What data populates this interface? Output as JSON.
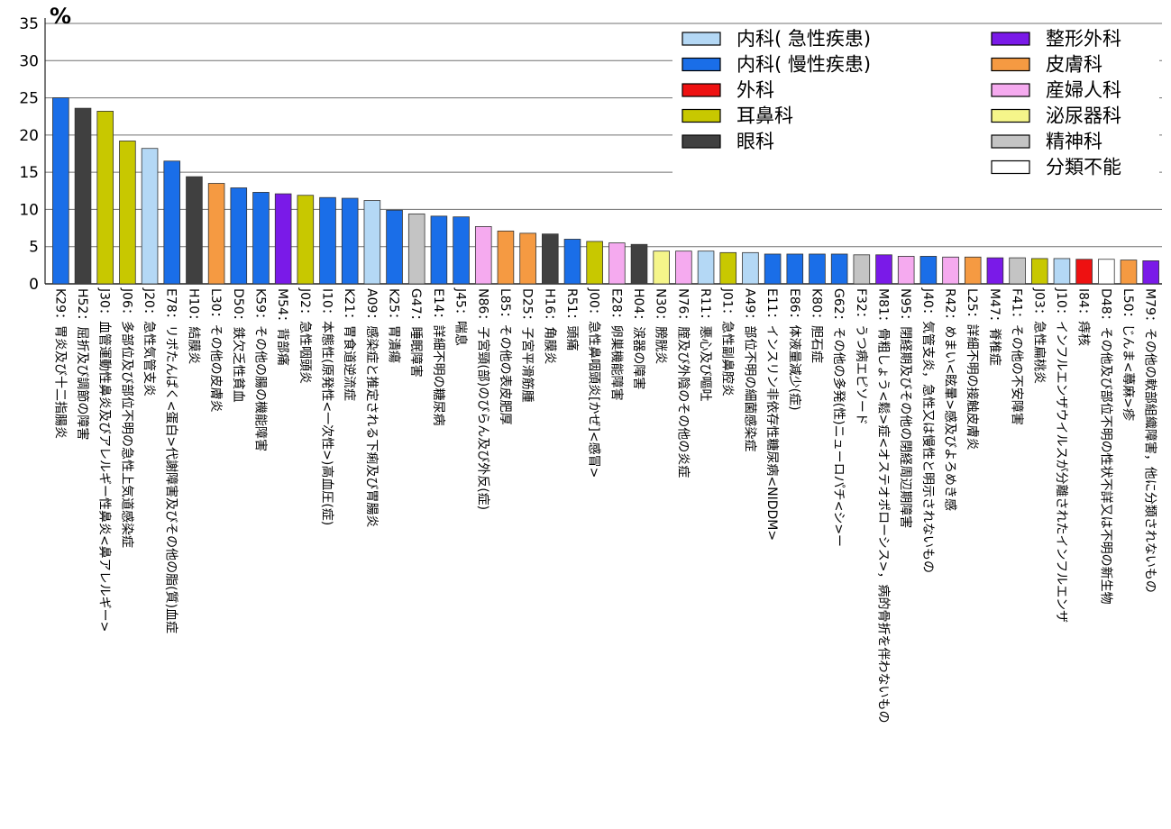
{
  "chart_data": {
    "type": "bar",
    "unit_label": "%",
    "ylim": [
      0,
      35
    ],
    "yticks": [
      0,
      5,
      10,
      15,
      20,
      25,
      30,
      35
    ],
    "grid": "horizontal",
    "legend_placement": "top-right",
    "legend": [
      {
        "key": "ia",
        "label": "内科( 急性疾患)",
        "color": "#b4d8f5"
      },
      {
        "key": "ic",
        "label": "内科( 慢性疾患)",
        "color": "#1a6ee8"
      },
      {
        "key": "su",
        "label": "外科",
        "color": "#ee1111"
      },
      {
        "key": "en",
        "label": "耳鼻科",
        "color": "#c8c800"
      },
      {
        "key": "op",
        "label": "眼科",
        "color": "#404040"
      },
      {
        "key": "or",
        "label": "整形外科",
        "color": "#7a1ae8"
      },
      {
        "key": "de",
        "label": "皮膚科",
        "color": "#f59a42"
      },
      {
        "key": "ob",
        "label": "産婦人科",
        "color": "#f5aaef"
      },
      {
        "key": "ur",
        "label": "泌尿器科",
        "color": "#f5f58a"
      },
      {
        "key": "ps",
        "label": "精神科",
        "color": "#c4c4c4"
      },
      {
        "key": "un",
        "label": "分類不能",
        "color": "#ffffff"
      }
    ],
    "categories": [
      "K29：胃炎及び十二指腸炎",
      "H52：屈折及び調節の障害",
      "J30：血管運動性鼻炎及びアレルギー性鼻炎<鼻アレルギー>",
      "J06：多部位及び部位不明の急性上気道感染症",
      "J20：急性気管支炎",
      "E78：リポたんぱく<蛋白>代謝障害及びその他の脂(質)血症",
      "H10：結膜炎",
      "L30：その他の皮膚炎",
      "D50：鉄欠乏性貧血",
      "K59：その他の腸の機能障害",
      "M54：背部痛",
      "J02：急性咽頭炎",
      "I10：本態性(原発性<一次性>)高血圧(症)",
      "K21：胃食道逆流症",
      "A09：感染症と推定される下痢及び胃腸炎",
      "K25：胃潰瘍",
      "G47：睡眠障害",
      "E14：詳細不明の糖尿病",
      "J45：喘息",
      "N86：子宮頸(部)のびらん及び外反(症)",
      "L85：その他の表皮肥厚",
      "D25：子宮平滑筋腫",
      "H16：角膜炎",
      "R51：頭痛",
      "J00：急性鼻咽頭炎[かぜ]<感冒>",
      "E28：卵巣機能障害",
      "H04：涙器の障害",
      "N30：膀胱炎",
      "N76：腟及び外陰のその他の炎症",
      "R11：悪心及び嘔吐",
      "J01：急性副鼻腔炎",
      "A49：部位不明の細菌感染症",
      "E11：インスリン非依存性糖尿病<NIDDM>",
      "E86：体液量減少(症)",
      "K80：胆石症",
      "G62：その他の多発(性)ニューロパチ<シ>ー",
      "F32：うつ病エピソード",
      "M81：骨粗しょう<鬆>症<オステオポローシス>，病的骨折を伴わないもの",
      "N95：閉経期及びその他の閉経周辺期障害",
      "J40：気管支炎，急性又は慢性と明示されないもの",
      "R42：めまい<眩暈>感及びよろめき感",
      "L25：詳細不明の接触皮膚炎",
      "M47：脊椎症",
      "F41：その他の不安障害",
      "J03：急性扁桃炎",
      "J10：インフルエンザウイルスが分離されたインフルエンザ",
      "I84：痔核",
      "D48：その他及び部位不明の性状不詳又は不明の新生物",
      "L50：じんま<蕁麻>疹",
      "M79：その他の軟部組織障害，他に分類されないもの"
    ],
    "values": [
      25.0,
      23.6,
      23.2,
      19.2,
      18.2,
      16.5,
      14.4,
      13.5,
      12.9,
      12.3,
      12.1,
      11.9,
      11.6,
      11.5,
      11.2,
      9.9,
      9.4,
      9.1,
      9.0,
      7.7,
      7.1,
      6.8,
      6.7,
      6.0,
      5.7,
      5.5,
      5.3,
      4.4,
      4.4,
      4.4,
      4.2,
      4.2,
      4.0,
      4.0,
      4.0,
      4.0,
      3.9,
      3.9,
      3.7,
      3.7,
      3.6,
      3.6,
      3.5,
      3.5,
      3.4,
      3.4,
      3.3,
      3.3,
      3.2,
      3.1
    ],
    "groups": [
      "ic",
      "op",
      "en",
      "en",
      "ia",
      "ic",
      "op",
      "de",
      "ic",
      "ic",
      "or",
      "en",
      "ic",
      "ic",
      "ia",
      "ic",
      "ps",
      "ic",
      "ic",
      "ob",
      "de",
      "de",
      "op",
      "ic",
      "en",
      "ob",
      "op",
      "ur",
      "ob",
      "ia",
      "en",
      "ia",
      "ic",
      "ic",
      "ic",
      "ic",
      "ps",
      "or",
      "ob",
      "ic",
      "ob",
      "de",
      "or",
      "ps",
      "en",
      "ia",
      "su",
      "un",
      "de",
      "or"
    ]
  }
}
